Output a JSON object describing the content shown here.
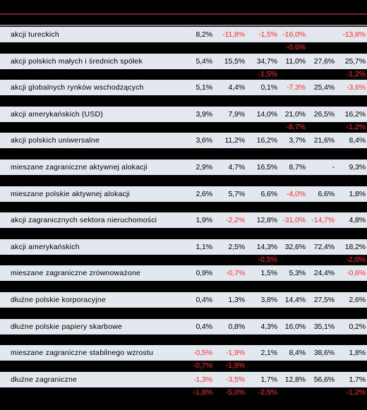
{
  "rows": [
    {
      "label": "akcji tureckich",
      "values": [
        "8,2%",
        "-11,8%",
        "-1,5%",
        "-16,0%",
        "",
        "-13,8%"
      ],
      "sub": [
        "",
        "",
        "",
        "-0,6%",
        "",
        ""
      ]
    },
    {
      "label": "akcji polskich małych i średnich spółek",
      "values": [
        "5,4%",
        "15,5%",
        "34,7%",
        "11,0%",
        "27,6%",
        "25,7%"
      ],
      "sub": [
        "",
        "",
        "-1,5%",
        "",
        "",
        "-1,2%"
      ]
    },
    {
      "label": "akcji globalnych rynków wschodzących",
      "values": [
        "5,1%",
        "4,4%",
        "0,1%",
        "-7,3%",
        "25,4%",
        "-3,6%"
      ],
      "sub": [
        "",
        "",
        "",
        "",
        "",
        ""
      ]
    },
    {
      "label": "akcji amerykańskich (USD)",
      "values": [
        "3,9%",
        "7,9%",
        "14,0%",
        "21,0%",
        "26,5%",
        "16,2%"
      ],
      "sub": [
        "",
        "",
        "",
        "-8,7%",
        "",
        "-1,2%"
      ]
    },
    {
      "label": "akcji polskich uniwersalne",
      "values": [
        "3,6%",
        "11,2%",
        "16,2%",
        "3,7%",
        "21,6%",
        "8,4%"
      ],
      "sub": [
        "",
        "",
        "",
        "",
        "",
        ""
      ]
    },
    {
      "label": "mieszane zagraniczne aktywnej alokacji",
      "values": [
        "2,9%",
        "4,7%",
        "16,5%",
        "8,7%",
        "-",
        "9,3%"
      ],
      "sub": [
        "",
        "",
        "",
        "",
        "",
        ""
      ]
    },
    {
      "label": "mieszane polskie aktywnej alokacji",
      "values": [
        "2,6%",
        "5,7%",
        "6,6%",
        "-4,0%",
        "6,6%",
        "1,8%"
      ],
      "sub": [
        "",
        "",
        "",
        "",
        "",
        ""
      ]
    },
    {
      "label": "akcji zagranicznych sektora nieruchomości",
      "values": [
        "1,9%",
        "-2,2%",
        "12,8%",
        "-31,0%",
        "-14,7%",
        "4,8%"
      ],
      "sub": [
        "",
        "",
        "",
        "",
        "",
        ""
      ]
    },
    {
      "label": "akcji amerykańskich",
      "values": [
        "1,1%",
        "2,5%",
        "14,3%",
        "32,6%",
        "72,4%",
        "18,2%"
      ],
      "sub": [
        "",
        "",
        "-0,5%",
        "",
        "",
        "-2,0%"
      ]
    },
    {
      "label": "mieszane zagraniczne zrównoważone",
      "values": [
        "0,9%",
        "-0,7%",
        "1,5%",
        "5,3%",
        "24,4%",
        "-0,6%"
      ],
      "sub": [
        "",
        "",
        "",
        "",
        "",
        ""
      ]
    },
    {
      "label": "dłużne polskie korporacyjne",
      "values": [
        "0,4%",
        "1,3%",
        "3,8%",
        "14,4%",
        "27,5%",
        "2,6%"
      ],
      "sub": [
        "",
        "",
        "",
        "",
        "",
        ""
      ]
    },
    {
      "label": "dłużne polskie papiery skarbowe",
      "values": [
        "0,4%",
        "0,8%",
        "4,3%",
        "16,0%",
        "35,1%",
        "0,2%"
      ],
      "sub": [
        "",
        "",
        "",
        "",
        "",
        ""
      ]
    },
    {
      "label": "mieszane zagraniczne stabilnego wzrostu",
      "values": [
        "-0,5%",
        "-1,9%",
        "2,1%",
        "8,4%",
        "38,6%",
        "1,8%"
      ],
      "sub": [
        "-0,7%",
        "-1,9%",
        "",
        "",
        "",
        ""
      ]
    },
    {
      "label": "dłużne zagraniczne",
      "values": [
        "-1,3%",
        "-3,5%",
        "1,7%",
        "12,8%",
        "56,6%",
        "1,7%"
      ],
      "sub": [
        "-1,8%",
        "-5,0%",
        "-2,5%",
        "",
        "",
        "-1,2%"
      ]
    }
  ]
}
